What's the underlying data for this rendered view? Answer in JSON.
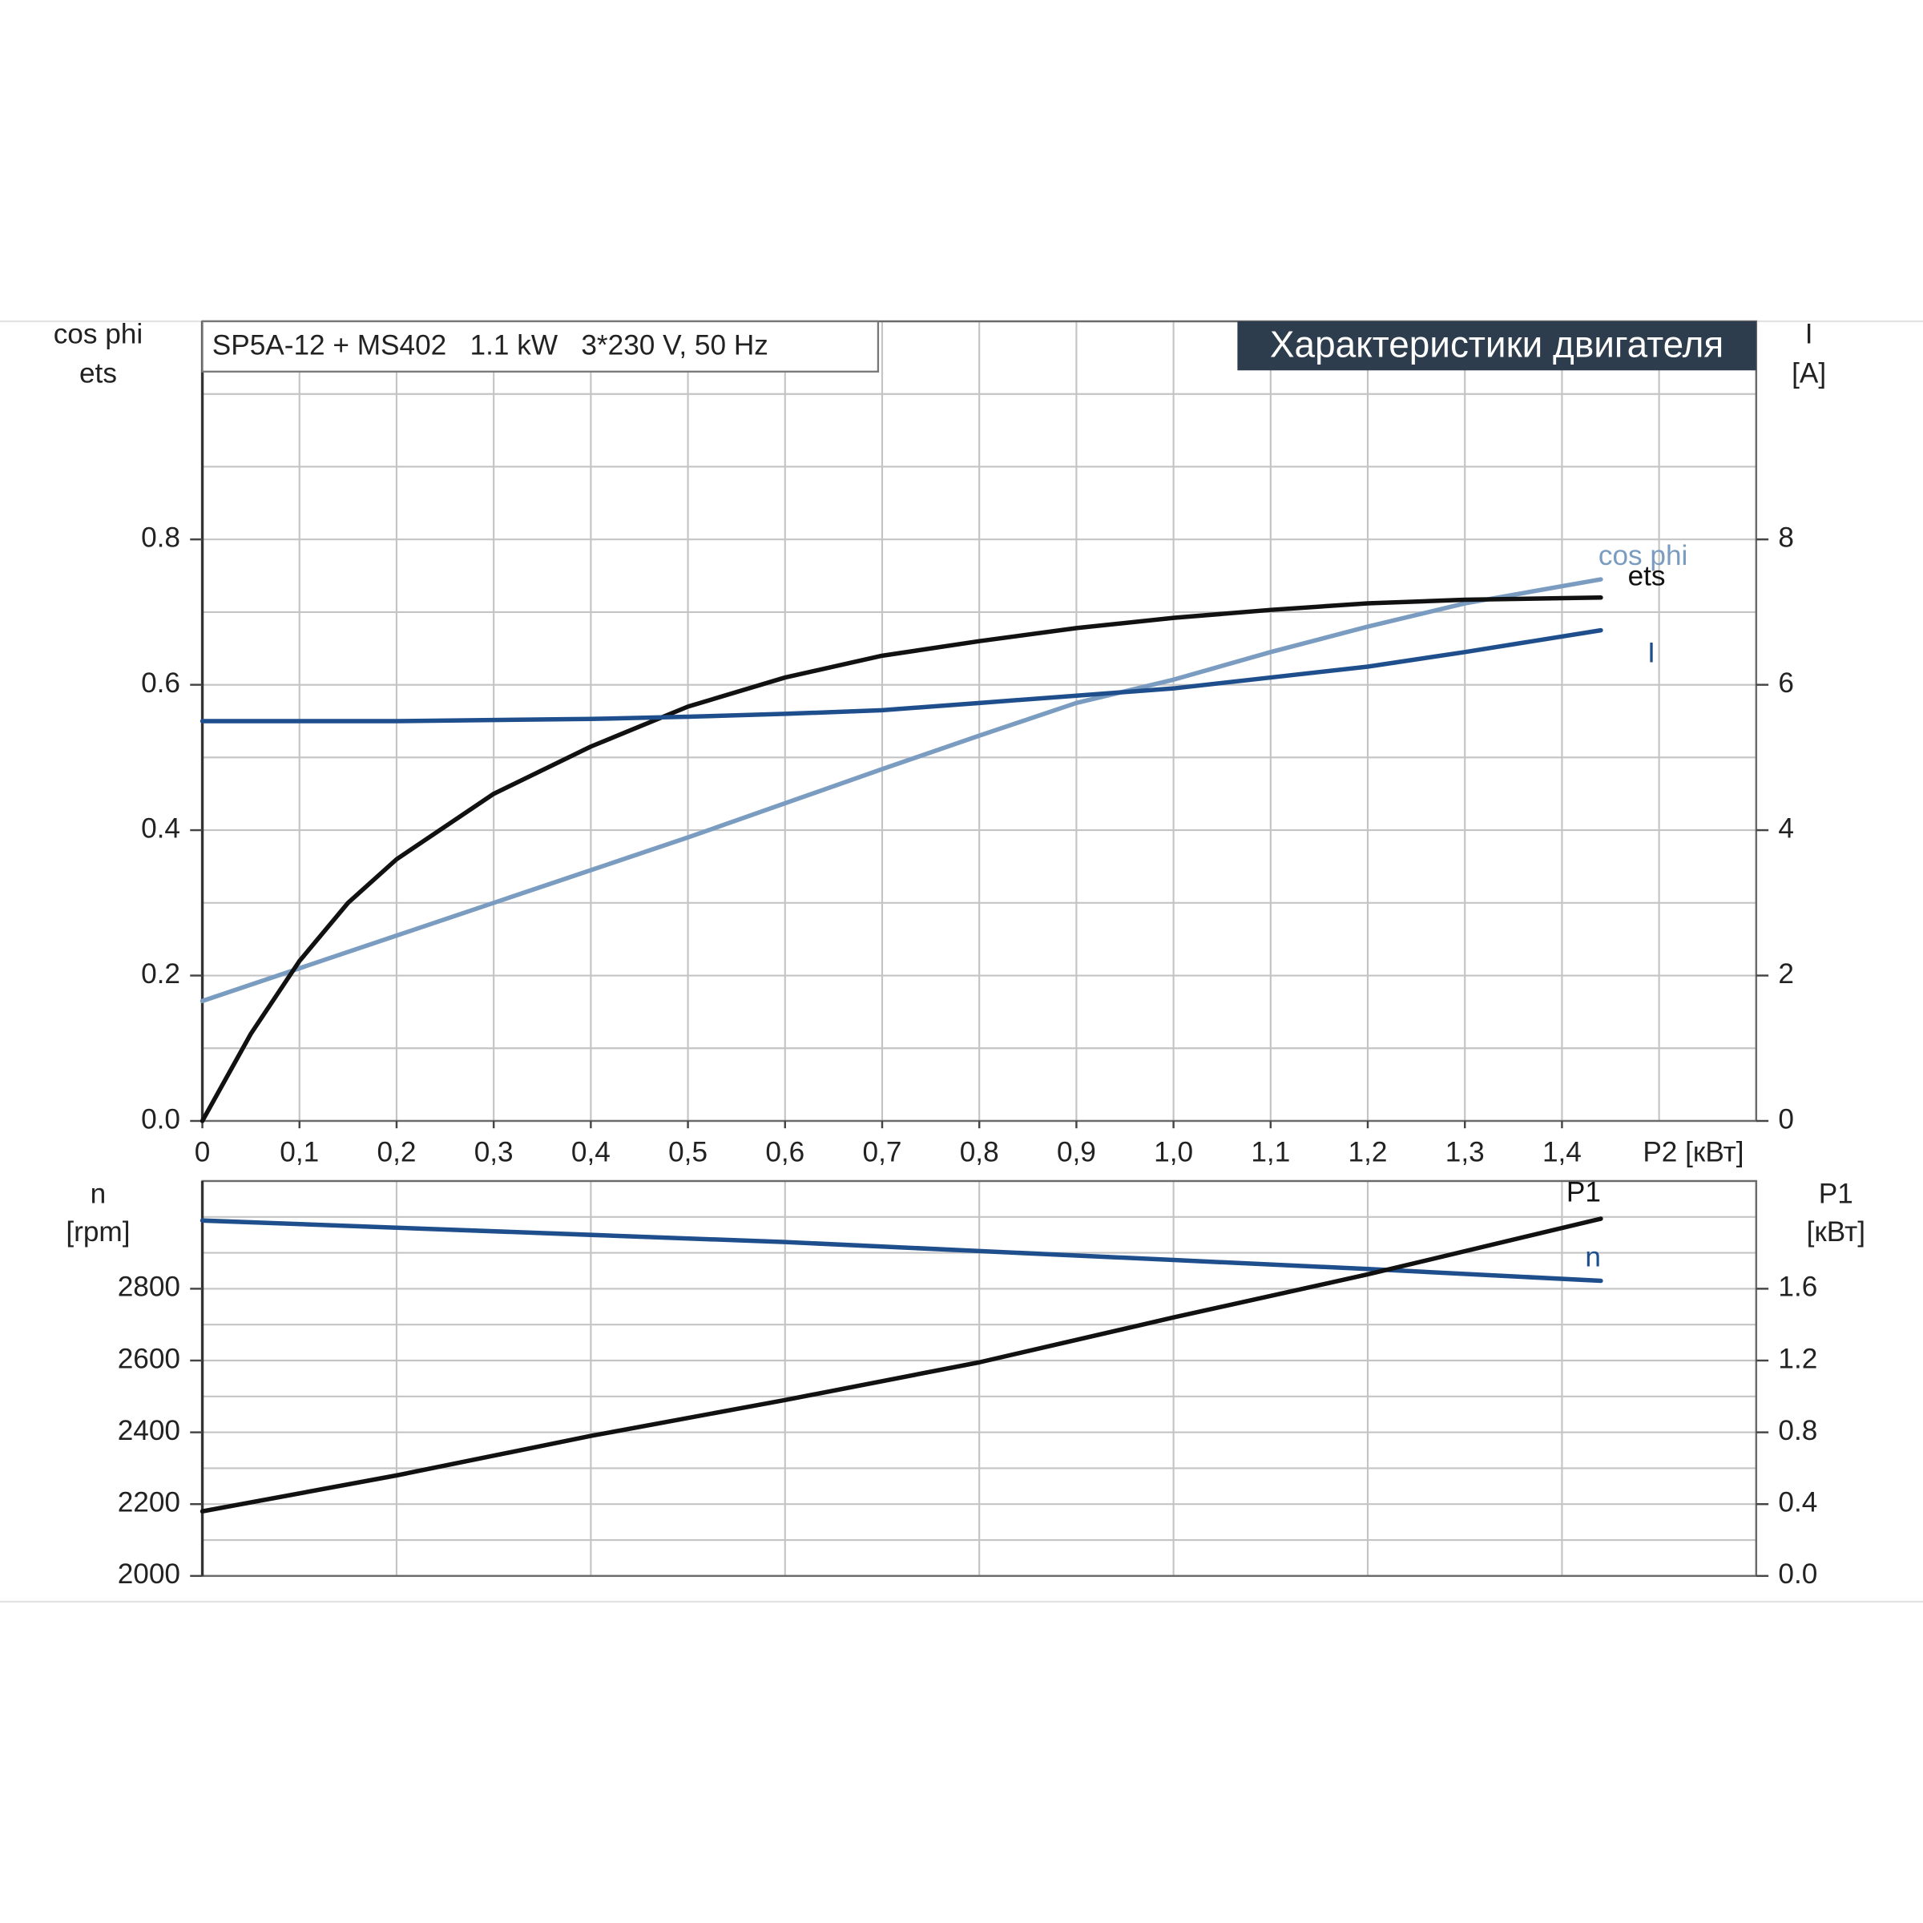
{
  "chart_data": [
    {
      "type": "line",
      "title": "Характеристики двигателя",
      "subtitle": "SP5A-12 + MS402   1.1 kW   3*230 V, 50 Hz",
      "ylabel": [
        "cos phi",
        "ets"
      ],
      "y2label": [
        "I",
        "[A]"
      ],
      "xlabel": "P2 [кВт]",
      "xlim": [
        0,
        1.6
      ],
      "xticks": [
        0,
        {
          "value": 0.1,
          "label": "0,1"
        },
        {
          "value": 0.2,
          "label": "0,2"
        },
        {
          "value": 0.3,
          "label": "0,3"
        },
        {
          "value": 0.4,
          "label": "0,4"
        },
        {
          "value": 0.5,
          "label": "0,5"
        },
        {
          "value": 0.6,
          "label": "0,6"
        },
        {
          "value": 0.7,
          "label": "0,7"
        },
        {
          "value": 0.8,
          "label": "0,8"
        },
        {
          "value": 0.9,
          "label": "0,9"
        },
        {
          "value": 1.0,
          "label": "1,0"
        },
        {
          "value": 1.1,
          "label": "1,1"
        },
        {
          "value": 1.2,
          "label": "1,2"
        },
        {
          "value": 1.3,
          "label": "1,3"
        },
        {
          "value": 1.4,
          "label": "1,4"
        }
      ],
      "minor_xticks": [
        1.5
      ],
      "ylim": [
        0,
        1.1
      ],
      "yticks": [
        {
          "value": 0,
          "label": "0.0"
        },
        0.2,
        0.4,
        0.6,
        0.8
      ],
      "minor_yticks": [
        0.1,
        0.3,
        0.5,
        0.7,
        0.9,
        1.0
      ],
      "y2lim": [
        0,
        11
      ],
      "y2ticks": [
        0,
        2,
        4,
        6,
        8
      ],
      "grid": true,
      "series": [
        {
          "name": "cos phi",
          "color": "#7a9cc0",
          "x": [
            0,
            0.1,
            0.2,
            0.3,
            0.4,
            0.5,
            0.6,
            0.7,
            0.8,
            0.9,
            1.0,
            1.1,
            1.2,
            1.3,
            1.44
          ],
          "values": [
            0.165,
            0.21,
            0.255,
            0.3,
            0.345,
            0.39,
            0.437,
            0.484,
            0.53,
            0.575,
            0.607,
            0.645,
            0.68,
            0.712,
            0.745
          ]
        },
        {
          "name": "ets",
          "color": "#111111",
          "x": [
            0,
            0.05,
            0.1,
            0.15,
            0.2,
            0.3,
            0.4,
            0.5,
            0.6,
            0.7,
            0.8,
            0.9,
            1.0,
            1.1,
            1.2,
            1.3,
            1.44
          ],
          "values": [
            0,
            0.12,
            0.22,
            0.3,
            0.36,
            0.45,
            0.515,
            0.57,
            0.61,
            0.64,
            0.66,
            0.678,
            0.692,
            0.703,
            0.712,
            0.717,
            0.72
          ]
        },
        {
          "name": "I",
          "color": "#1f4e8c",
          "axis": "y2",
          "x": [
            0,
            0.2,
            0.4,
            0.5,
            0.6,
            0.7,
            0.8,
            0.9,
            1.0,
            1.1,
            1.2,
            1.3,
            1.44
          ],
          "values": [
            5.5,
            5.5,
            5.53,
            5.56,
            5.6,
            5.65,
            5.75,
            5.85,
            5.95,
            6.1,
            6.25,
            6.45,
            6.75
          ]
        }
      ]
    },
    {
      "type": "line",
      "ylabel": [
        "n",
        "[rpm]"
      ],
      "y2label": [
        "P1",
        "[кВт]"
      ],
      "xlim": [
        0,
        1.6
      ],
      "minor_xticks": [
        0.2,
        0.4,
        0.6,
        0.8,
        1.0,
        1.2,
        1.4
      ],
      "ylim": [
        2000,
        3100
      ],
      "yticks": [
        2000,
        2200,
        2400,
        2600,
        2800
      ],
      "minor_yticks": [
        2100,
        2300,
        2500,
        2700,
        2900,
        3000
      ],
      "y2lim": [
        0,
        2.2
      ],
      "y2ticks": [
        {
          "value": 0,
          "label": "0.0"
        },
        0.4,
        0.8,
        1.2,
        1.6
      ],
      "grid": true,
      "series": [
        {
          "name": "n",
          "color": "#1f4e8c",
          "x": [
            0,
            0.2,
            0.4,
            0.6,
            0.8,
            1.0,
            1.2,
            1.44
          ],
          "values": [
            2990,
            2970,
            2950,
            2930,
            2905,
            2880,
            2855,
            2822
          ]
        },
        {
          "name": "P1",
          "color": "#111111",
          "axis": "y2",
          "x": [
            0,
            0.2,
            0.4,
            0.6,
            0.8,
            1.0,
            1.2,
            1.44
          ],
          "values": [
            0.36,
            0.56,
            0.78,
            0.98,
            1.19,
            1.44,
            1.68,
            1.99
          ]
        }
      ]
    }
  ]
}
